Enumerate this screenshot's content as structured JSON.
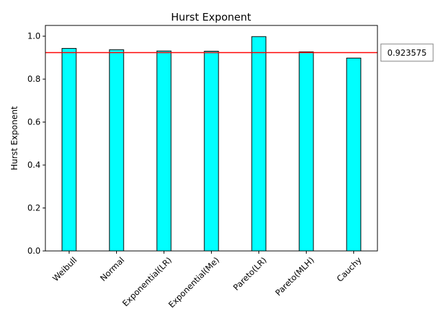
{
  "chart_data": {
    "type": "bar",
    "title": "Hurst Exponent",
    "xlabel": "",
    "ylabel": "Hurst Exponent",
    "categories": [
      "Weibull",
      "Normal",
      "Exponential(LR)",
      "Exponential(Me)",
      "Pareto(LR)",
      "Pareto(MLH)",
      "Cauchy"
    ],
    "values": [
      0.943,
      0.937,
      0.931,
      0.93,
      0.998,
      0.927,
      0.898
    ],
    "ylim": [
      0,
      1.05
    ],
    "yticks": [
      "0.0",
      "0.2",
      "0.4",
      "0.6",
      "0.8",
      "1.0"
    ],
    "bar_color": "#00ffff",
    "bar_edge_color": "#000000",
    "reference_line": {
      "value": 0.923575,
      "label": "0.923575",
      "color": "#ff0000"
    },
    "grid": false
  }
}
